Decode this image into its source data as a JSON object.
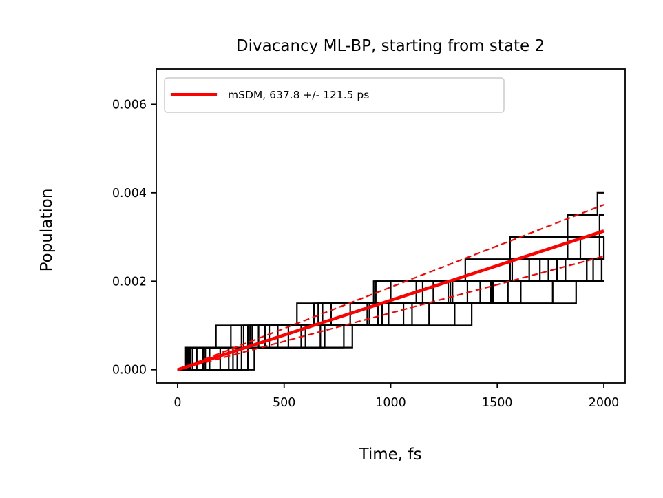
{
  "chart_data": {
    "type": "line",
    "title": "Divacancy ML-BP, starting from state 2",
    "xlabel": "Time, fs",
    "ylabel": "Population",
    "xlim": [
      -100,
      2100
    ],
    "ylim": [
      -0.0003,
      0.0068
    ],
    "x_ticks": [
      0,
      500,
      1000,
      1500,
      2000
    ],
    "x_tick_labels": [
      "0",
      "500",
      "1000",
      "1500",
      "2000"
    ],
    "y_ticks": [
      0.0,
      0.002,
      0.004,
      0.006
    ],
    "y_tick_labels": [
      "0.000",
      "0.002",
      "0.004",
      "0.006"
    ],
    "grid": false,
    "legend": {
      "position": "top-left",
      "entries": [
        "mSDM,  637.8 +/-  121.5 ps"
      ]
    },
    "colors": {
      "trajectories": "#000000",
      "fit": "#ff0000"
    },
    "trajectory_step": 0.0005,
    "trajectories": [
      {
        "jumps": [
          50,
          310,
          960,
          1280,
          1990
        ]
      },
      {
        "jumps": [
          40,
          180,
          560,
          1360,
          1820
        ]
      },
      {
        "jumps": [
          300,
          780,
          1300,
          1870
        ]
      },
      {
        "jumps": [
          70,
          250,
          660,
          1000,
          1560,
          2000
        ]
      },
      {
        "jumps": [
          330,
          690,
          1180,
          1610
        ]
      },
      {
        "jumps": [
          60,
          410,
          940,
          1420
        ]
      },
      {
        "jumps": [
          130,
          380,
          720,
          1150,
          1700,
          1980
        ]
      },
      {
        "jumps": [
          280,
          580,
          1060,
          1550,
          1950
        ]
      },
      {
        "jumps": [
          120,
          470,
          680,
          920,
          1570,
          1830,
          1980
        ]
      },
      {
        "jumps": [
          45,
          350,
          640,
          930,
          1350,
          1560,
          1830,
          1970
        ]
      },
      {
        "jumps": [
          200,
          520,
          890,
          1120,
          1780
        ]
      },
      {
        "jumps": [
          35,
          340,
          720,
          1290,
          1740
        ]
      },
      {
        "jumps": [
          90,
          300,
          810,
          1200,
          1650,
          1890
        ]
      },
      {
        "jumps": [
          260,
          600,
          960,
          1470,
          1920
        ]
      },
      {
        "jumps": [
          150,
          430,
          990,
          1480,
          1920
        ]
      },
      {
        "jumps": [
          55,
          330,
          900,
          1270
        ]
      },
      {
        "jumps": [
          240,
          670,
          1100,
          1610,
          1990
        ]
      },
      {
        "jumps": [
          360,
          820,
          1380,
          1760
        ]
      }
    ],
    "series": [
      {
        "name": "mSDM,  637.8 +/-  121.5 ps",
        "x": [
          0,
          2000
        ],
        "y": [
          0.0,
          0.003136
        ],
        "style": "solid"
      },
      {
        "x": [
          0,
          2000
        ],
        "y": [
          0.0,
          0.00373
        ],
        "style": "dashed"
      },
      {
        "x": [
          0,
          2000
        ],
        "y": [
          0.0,
          0.002564
        ],
        "style": "dashed"
      }
    ]
  }
}
